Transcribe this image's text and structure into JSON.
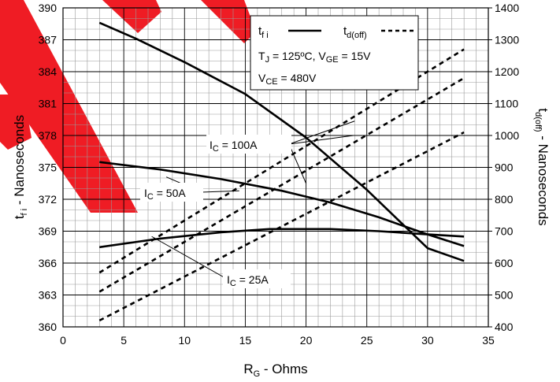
{
  "chart_data": {
    "type": "line",
    "xlabel": {
      "main": "R",
      "sub": "G",
      "rest": " - Ohms"
    },
    "ylabel_left": {
      "main": "t",
      "sub": "f i",
      "rest": " - Nanoseconds"
    },
    "ylabel_right": {
      "main": "t",
      "sub": "d(off)",
      "rest": " - Nanoseconds"
    },
    "xlim": [
      0,
      35
    ],
    "ylim_left": [
      360,
      390
    ],
    "ylim_right": [
      400,
      1400
    ],
    "xticks": [
      "0",
      "5",
      "10",
      "15",
      "20",
      "25",
      "30",
      "35"
    ],
    "yticks_left": [
      "360",
      "363",
      "366",
      "369",
      "372",
      "375",
      "378",
      "381",
      "384",
      "387",
      "390"
    ],
    "yticks_right": [
      "400",
      "500",
      "600",
      "700",
      "800",
      "900",
      "1000",
      "1100",
      "1200",
      "1300",
      "1400"
    ],
    "legend": {
      "tfi": {
        "main": "t",
        "sub": "f i"
      },
      "tdoff": {
        "main": "t",
        "sub": "d(off)"
      },
      "cond1": {
        "a": "T",
        "a_sub": "J",
        "b": " = 125ºC,  V",
        "b_sub": "GE",
        "c": " = 15V"
      },
      "cond2": {
        "a": "V",
        "a_sub": "CE",
        "b": " = 480V"
      }
    },
    "annotations": {
      "ic100": {
        "main": "I",
        "sub": "C",
        "rest": " = 100A"
      },
      "ic50": {
        "main": "I",
        "sub": "C",
        "rest": " = 50A"
      },
      "ic25": {
        "main": "I",
        "sub": "C",
        "rest": " = 25A"
      }
    },
    "series": [
      {
        "axis": "left",
        "style": "solid",
        "x": [
          3,
          6,
          10,
          15,
          20,
          25,
          30,
          33
        ],
        "y": [
          388.6,
          387.1,
          384.9,
          381.9,
          377.8,
          372.9,
          367.4,
          366.2
        ]
      },
      {
        "axis": "left",
        "style": "solid",
        "x": [
          3,
          8,
          13,
          18,
          22,
          26,
          30,
          33
        ],
        "y": [
          375.5,
          374.8,
          373.9,
          372.8,
          371.7,
          370.3,
          368.7,
          367.6
        ]
      },
      {
        "axis": "left",
        "style": "solid",
        "x": [
          3,
          8,
          13,
          17,
          22,
          26,
          30,
          33
        ],
        "y": [
          367.5,
          368.3,
          368.9,
          369.2,
          369.2,
          369.0,
          368.7,
          368.5
        ]
      },
      {
        "axis": "right",
        "style": "dashed",
        "x": [
          3,
          33
        ],
        "y": [
          570,
          1270
        ]
      },
      {
        "axis": "right",
        "style": "dashed",
        "x": [
          3,
          33
        ],
        "y": [
          510,
          1180
        ]
      },
      {
        "axis": "right",
        "style": "dashed",
        "x": [
          3,
          33
        ],
        "y": [
          420,
          1010
        ]
      }
    ]
  }
}
